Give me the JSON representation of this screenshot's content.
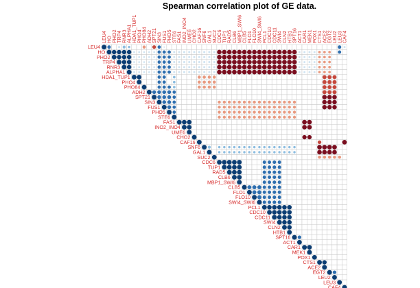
{
  "chart_data": {
    "type": "heatmap",
    "title": "Spearman correlation plot of GE data.",
    "layout": "upper-triangle",
    "marker": "circle",
    "grid": true,
    "legend": "none",
    "labels": [
      "LEU4",
      "HO",
      "PHO2",
      "TRP4",
      "RNR3",
      "ALPHA1",
      "HDA1_TUP1",
      "PHO4",
      "PHO84",
      "ADH2",
      "SPT21",
      "SIN3",
      "FUS1",
      "PHO5",
      "STE6",
      "FAS1",
      "INO2_INO4",
      "UME6",
      "CHO2",
      "CAF16",
      "SNF6",
      "GAL1",
      "SUC2",
      "CDC6",
      "TUP1",
      "RAD5",
      "CLB6",
      "MBP1_SWI6",
      "CLB5",
      "FLO1",
      "FLO10",
      "SWI4_SWI6",
      "PCL1",
      "CDC10",
      "CDC11",
      "SWI4",
      "CLN2",
      "HTB1",
      "SPT16",
      "ACT1",
      "CAR1",
      "MEK1",
      "POX1",
      "CTS1",
      "ACE2",
      "EGT2",
      "LEU2",
      "LEU3",
      "CAF4"
    ],
    "value_range": [
      -1,
      1
    ],
    "colors": {
      "strong_positive": "#0b3d73",
      "positive": "#2f6faf",
      "weak_positive": "#8cbde0",
      "faint_positive": "#cfe3f1",
      "faint_negative": "#f6d5c6",
      "weak_negative": "#e89a80",
      "negative": "#c5493d",
      "strong_negative": "#7a0e1f",
      "grid": "#c8c8c8",
      "label": "#d62a2a"
    },
    "correlations": [
      {
        "pair": [
          "LEU4",
          "HO"
        ],
        "rho": 0.55
      },
      {
        "pair": [
          "LEU4",
          "TRP4"
        ],
        "rho": 0.2
      },
      {
        "pair": [
          "LEU4",
          "RNR3"
        ],
        "rho": 0.4
      },
      {
        "pair": [
          "LEU4",
          "ALPHA1"
        ],
        "rho": 0.25
      },
      {
        "pair": [
          "LEU4",
          "PHO84"
        ],
        "rho": -0.45
      },
      {
        "pair": [
          "LEU4",
          "SPT21"
        ],
        "rho": -0.6
      },
      {
        "pair": [
          "LEU4",
          "SIN3"
        ],
        "rho": 0.5
      },
      {
        "pair": [
          "LEU4",
          "FUS1"
        ],
        "rho": 0.1
      },
      {
        "pair": [
          "LEU4",
          "LEU3"
        ],
        "rho": 0.55
      },
      {
        "pair": [
          "LEU4",
          "CAF4"
        ],
        "rho": 0.2
      },
      {
        "block": [
          "HO",
          "ALPHA1"
        ],
        "rho": 0.9
      },
      {
        "block": [
          "HO",
          "ALPHA1",
          "HDA1_TUP1",
          "SPT21"
        ],
        "rho": 0.15
      },
      {
        "block": [
          "HO",
          "ALPHA1",
          "SIN3",
          "PHO5"
        ],
        "rho": 0.5
      },
      {
        "block": [
          "HO",
          "ALPHA1",
          "STE6",
          "SUC2"
        ],
        "rho": 0.2
      },
      {
        "block": [
          "HO",
          "ALPHA1",
          "CDC6",
          "SPT16"
        ],
        "rho": -0.95
      },
      {
        "block": [
          "HO",
          "ALPHA1",
          "ACT1",
          "POX1"
        ],
        "rho": 0.18
      },
      {
        "block": [
          "HO",
          "ALPHA1",
          "CTS1",
          "EGT2"
        ],
        "rho": -0.3
      },
      {
        "pair": [
          "HO",
          "LEU3"
        ],
        "rho": 0.5
      },
      {
        "block": [
          "HDA1_TUP1",
          "PHO4"
        ],
        "rho": 0.95
      },
      {
        "block": [
          "HDA1_TUP1",
          "PHO84",
          "SIN3",
          "FUS1"
        ],
        "rho": 0.5
      },
      {
        "pair": [
          "PHO84",
          "PHO5"
        ],
        "rho": 0.5
      },
      {
        "block": [
          "ADH2",
          "PHO5"
        ],
        "rho": 0.65
      },
      {
        "block": [
          "HDA1_TUP1",
          "STE6",
          "STE6",
          "STE6"
        ],
        "rho": 0.3
      },
      {
        "block": [
          "ADH2",
          "STE6",
          "STE6",
          "STE6"
        ],
        "rho": 0.5
      },
      {
        "block": [
          "HDA1_TUP1",
          "PHO84",
          "CAF16",
          "SUC2"
        ],
        "rho": -0.45
      },
      {
        "block": [
          "HDA1_TUP1",
          "ADH2",
          "ACE2",
          "LEU2"
        ],
        "rho": -0.75
      },
      {
        "block": [
          "SPT21",
          "FUS1",
          "ACE2",
          "LEU2"
        ],
        "rho": -0.9
      },
      {
        "block": [
          "SIN3",
          "STE6",
          "CDC6",
          "SPT16"
        ],
        "rho": -0.4
      },
      {
        "block": [
          "FAS1",
          "UME6"
        ],
        "rho": 0.95
      },
      {
        "block": [
          "FAS1",
          "INO2_INO4",
          "CAR1",
          "MEK1"
        ],
        "rho": -0.95
      },
      {
        "block": [
          "CHO2",
          "CHO2",
          "CAR1",
          "MEK1"
        ],
        "rho": -0.85
      },
      {
        "pair": [
          "CAF16",
          "CTS1"
        ],
        "rho": -0.6
      },
      {
        "pair": [
          "CAF16",
          "CAF4"
        ],
        "rho": -0.95
      },
      {
        "block": [
          "SNF6",
          "GAL1"
        ],
        "rho": 0.4
      },
      {
        "block": [
          "SNF6",
          "GAL1",
          "CDC6",
          "SPT16"
        ],
        "rho": 0.25
      },
      {
        "block": [
          "SNF6",
          "GAL1",
          "CTS1",
          "LEU2"
        ],
        "rho": -0.95
      },
      {
        "block": [
          "SUC2",
          "SUC2",
          "CTS1",
          "LEU3"
        ],
        "rho": -0.45
      },
      {
        "block": [
          "CDC6",
          "MBP1_SWI6"
        ],
        "rho": 0.97
      },
      {
        "block": [
          "CLB5",
          "SWI4_SWI6"
        ],
        "rho": 0.75
      },
      {
        "block": [
          "CDC6",
          "SWI4_SWI6",
          "PCL1",
          "SWI4"
        ],
        "rho": 0.55
      },
      {
        "block": [
          "PCL1",
          "HTB1"
        ],
        "rho": 0.92
      },
      {
        "block": [
          "SPT16",
          "ACT1"
        ],
        "rho": 0.6
      },
      {
        "block": [
          "CAR1",
          "MEK1"
        ],
        "rho": 0.95
      },
      {
        "block": [
          "CTS1",
          "ACE2"
        ],
        "rho": 0.85
      },
      {
        "block": [
          "EGT2",
          "LEU2"
        ],
        "rho": 0.6
      }
    ]
  }
}
